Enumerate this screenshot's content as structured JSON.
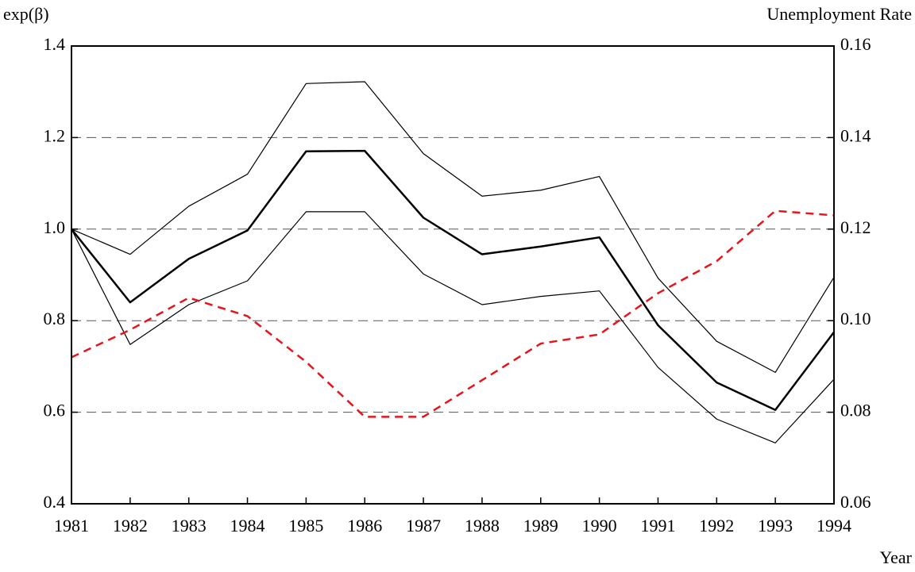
{
  "chart_data": {
    "type": "line",
    "y_label": "exp(β)",
    "y2_label": "Unemployment Rate",
    "x_label": "Year",
    "x": [
      1981,
      1982,
      1983,
      1984,
      1985,
      1986,
      1987,
      1988,
      1989,
      1990,
      1991,
      1992,
      1993,
      1994
    ],
    "xlim": [
      1981,
      1994
    ],
    "xticks": [
      1981,
      1982,
      1983,
      1984,
      1985,
      1986,
      1987,
      1988,
      1989,
      1990,
      1991,
      1992,
      1993,
      1994
    ],
    "ylim": [
      0.4,
      1.4
    ],
    "yticks": [
      0.4,
      0.6,
      0.8,
      {
        "value": 1,
        "label": "1.0"
      },
      1.2,
      1.4
    ],
    "y2lim": [
      0.06,
      0.16
    ],
    "y2ticks": [
      0.06,
      0.08,
      {
        "value": 0.1,
        "label": "0.10"
      },
      0.12,
      0.14,
      0.16
    ],
    "grid": true,
    "series": [
      {
        "color": "#000000",
        "width": 2.5,
        "dash": "none",
        "values": [
          1.0,
          0.84,
          0.935,
          0.997,
          1.17,
          1.171,
          1.025,
          0.945,
          0.962,
          0.982,
          0.79,
          0.665,
          0.605,
          0.775
        ]
      },
      {
        "color": "#000000",
        "width": 1.2,
        "dash": "none",
        "values": [
          1.0,
          0.945,
          1.05,
          1.12,
          1.318,
          1.322,
          1.165,
          1.072,
          1.085,
          1.115,
          0.893,
          0.755,
          0.687,
          0.895
        ]
      },
      {
        "color": "#000000",
        "width": 1.2,
        "dash": "none",
        "values": [
          1.0,
          0.748,
          0.835,
          0.887,
          1.038,
          1.038,
          0.902,
          0.835,
          0.853,
          0.865,
          0.698,
          0.585,
          0.533,
          0.672
        ]
      },
      {
        "color": "#e8141c",
        "width": 2.5,
        "dash": "10 7",
        "axis": "y2",
        "values": [
          0.092,
          0.098,
          0.105,
          0.101,
          0.091,
          0.079,
          0.079,
          0.087,
          0.095,
          0.097,
          0.106,
          0.113,
          0.124,
          0.123
        ]
      }
    ]
  }
}
